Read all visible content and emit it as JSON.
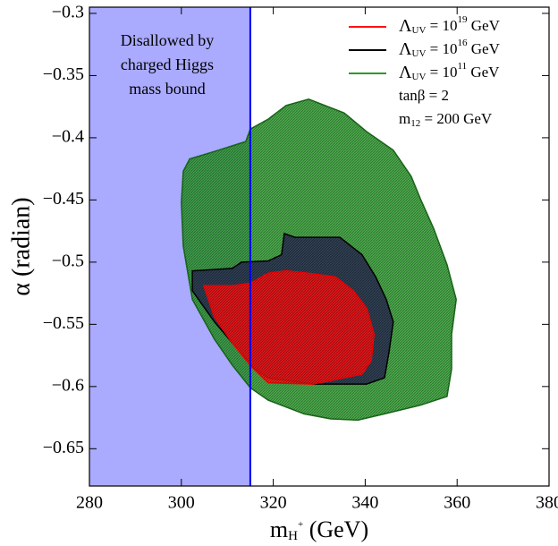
{
  "chart_data": {
    "type": "area",
    "xlim": [
      280,
      380
    ],
    "ylim": [
      -0.68,
      -0.295
    ],
    "xticks": [
      280,
      300,
      320,
      340,
      360,
      380
    ],
    "yticks": [
      {
        "value": -0.65,
        "label": "−0.65"
      },
      {
        "value": -0.6,
        "label": "−0.6"
      },
      {
        "value": -0.55,
        "label": "−0.55"
      },
      {
        "value": -0.5,
        "label": "−0.5"
      },
      {
        "value": -0.45,
        "label": "−0.45"
      },
      {
        "value": -0.4,
        "label": "−0.4"
      },
      {
        "value": -0.35,
        "label": "−0.35"
      },
      {
        "value": -0.3,
        "label": "−0.3"
      }
    ],
    "x_label": {
      "base": "m",
      "sub": "H",
      "sup": "+",
      "rest": " (GeV)"
    },
    "y_label": "α (radian)",
    "excluded_region": {
      "xrange": [
        280,
        315
      ],
      "color": "#aaaaff",
      "edge_color": "#0000ee",
      "text": [
        "Disallowed by",
        "charged Higgs",
        "mass bound"
      ]
    },
    "annotations": [
      {
        "text": "tanβ = 2"
      },
      {
        "base": "m",
        "sub": "12",
        "rest": " = 200 GeV"
      }
    ],
    "legend_position": "upper right",
    "series": [
      {
        "label": {
          "base": "Λ",
          "sub": "UV",
          "text": " = 10",
          "sup": "11",
          "unit": " GeV"
        },
        "color": "#2a9a2a",
        "edge": "#1a6a1a",
        "x": [
          300.4,
          301.8,
          307.2,
          314.0,
          315.0,
          318.9,
          322.8,
          327.7,
          335.4,
          340.3,
          346.1,
          350.0,
          352.0,
          354.9,
          357.8,
          359.8,
          358.8,
          358.8,
          357.8,
          352.0,
          344.2,
          338.4,
          332.5,
          326.7,
          318.9,
          315.0,
          311.1,
          307.2,
          302.4,
          300.4,
          300.0
        ],
        "y": [
          -0.427,
          -0.417,
          -0.411,
          -0.403,
          -0.393,
          -0.385,
          -0.374,
          -0.369,
          -0.38,
          -0.395,
          -0.41,
          -0.431,
          -0.449,
          -0.473,
          -0.502,
          -0.53,
          -0.558,
          -0.586,
          -0.608,
          -0.615,
          -0.622,
          -0.627,
          -0.626,
          -0.622,
          -0.611,
          -0.601,
          -0.583,
          -0.562,
          -0.53,
          -0.487,
          -0.452
        ]
      },
      {
        "label": {
          "base": "Λ",
          "sub": "UV",
          "text": " = 10",
          "sup": "16",
          "unit": " GeV"
        },
        "color": "#2b2f55",
        "edge": "#000000",
        "x": [
          302.4,
          311.1,
          313.1,
          318.9,
          321.8,
          322.4,
          324.7,
          334.5,
          339.3,
          342.3,
          344.6,
          346.1,
          345.2,
          344.2,
          340.3,
          328.6,
          318.9,
          316.0,
          311.1,
          307.2,
          302.4
        ],
        "y": [
          -0.507,
          -0.505,
          -0.5,
          -0.499,
          -0.494,
          -0.477,
          -0.48,
          -0.48,
          -0.494,
          -0.512,
          -0.53,
          -0.548,
          -0.572,
          -0.593,
          -0.598,
          -0.598,
          -0.593,
          -0.586,
          -0.565,
          -0.548,
          -0.523
        ]
      },
      {
        "label": {
          "base": "Λ",
          "sub": "UV",
          "text": " = 10",
          "sup": "19",
          "unit": " GeV"
        },
        "color": "#ff1010",
        "edge": "#ff0000",
        "x": [
          304.9,
          311.1,
          315.0,
          318.9,
          322.8,
          327.7,
          333.5,
          337.4,
          340.3,
          341.9,
          341.3,
          339.3,
          328.6,
          318.9,
          315.0,
          311.1,
          307.2
        ],
        "y": [
          -0.519,
          -0.519,
          -0.517,
          -0.509,
          -0.507,
          -0.509,
          -0.512,
          -0.523,
          -0.537,
          -0.558,
          -0.579,
          -0.59,
          -0.598,
          -0.597,
          -0.583,
          -0.565,
          -0.544
        ]
      }
    ]
  }
}
